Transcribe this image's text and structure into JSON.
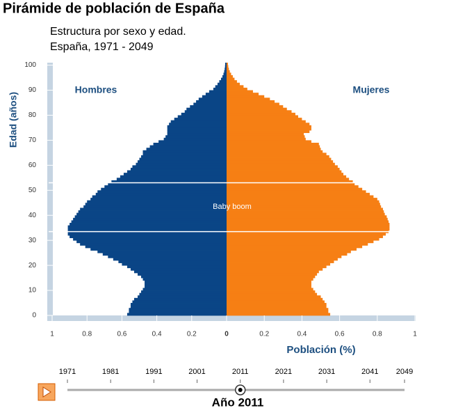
{
  "chart_data": {
    "type": "pyramid",
    "title": "Pirámide de población de España",
    "subtitle": [
      "Estructura por sexo y edad.",
      "España, 1971 - 2049"
    ],
    "y_label": "Edad (años)",
    "x_label": "Población (%)",
    "ylim": [
      0,
      101
    ],
    "yticks": [
      0,
      10,
      20,
      30,
      40,
      50,
      60,
      70,
      80,
      90,
      100
    ],
    "series": [
      {
        "name": "Hombres",
        "color": "#0a4586",
        "side": "left",
        "xlim": [
          1,
          0
        ],
        "xticks": [
          1,
          0.8,
          0.6,
          0.4,
          0.2,
          0
        ],
        "values": [
          0.57,
          0.56,
          0.56,
          0.55,
          0.55,
          0.54,
          0.53,
          0.51,
          0.5,
          0.49,
          0.48,
          0.47,
          0.47,
          0.47,
          0.48,
          0.49,
          0.51,
          0.53,
          0.55,
          0.57,
          0.6,
          0.62,
          0.65,
          0.68,
          0.71,
          0.74,
          0.78,
          0.81,
          0.84,
          0.86,
          0.88,
          0.9,
          0.91,
          0.91,
          0.91,
          0.91,
          0.9,
          0.89,
          0.88,
          0.87,
          0.86,
          0.85,
          0.84,
          0.82,
          0.81,
          0.8,
          0.78,
          0.77,
          0.75,
          0.74,
          0.72,
          0.7,
          0.68,
          0.66,
          0.63,
          0.61,
          0.59,
          0.57,
          0.55,
          0.54,
          0.52,
          0.51,
          0.5,
          0.49,
          0.48,
          0.48,
          0.46,
          0.44,
          0.42,
          0.39,
          0.36,
          0.35,
          0.34,
          0.34,
          0.34,
          0.34,
          0.33,
          0.32,
          0.3,
          0.28,
          0.26,
          0.24,
          0.23,
          0.21,
          0.19,
          0.175,
          0.16,
          0.14,
          0.12,
          0.1,
          0.076,
          0.065,
          0.052,
          0.042,
          0.032,
          0.024,
          0.018,
          0.014,
          0.011,
          0.009,
          0.008
        ]
      },
      {
        "name": "Mujeres",
        "color": "#f67f14",
        "side": "right",
        "xlim": [
          0,
          1
        ],
        "xticks": [
          0.2,
          0.4,
          0.6,
          0.8,
          1
        ],
        "values": [
          0.55,
          0.54,
          0.54,
          0.53,
          0.53,
          0.52,
          0.51,
          0.5,
          0.48,
          0.47,
          0.46,
          0.45,
          0.45,
          0.45,
          0.46,
          0.47,
          0.48,
          0.49,
          0.51,
          0.53,
          0.55,
          0.57,
          0.59,
          0.61,
          0.64,
          0.66,
          0.69,
          0.72,
          0.75,
          0.78,
          0.81,
          0.83,
          0.845,
          0.86,
          0.865,
          0.865,
          0.865,
          0.86,
          0.855,
          0.85,
          0.84,
          0.835,
          0.83,
          0.82,
          0.815,
          0.81,
          0.8,
          0.78,
          0.76,
          0.74,
          0.72,
          0.7,
          0.68,
          0.67,
          0.65,
          0.635,
          0.62,
          0.61,
          0.6,
          0.59,
          0.575,
          0.565,
          0.555,
          0.545,
          0.53,
          0.51,
          0.5,
          0.495,
          0.49,
          0.45,
          0.42,
          0.415,
          0.41,
          0.44,
          0.45,
          0.45,
          0.44,
          0.42,
          0.4,
          0.38,
          0.365,
          0.345,
          0.32,
          0.3,
          0.28,
          0.255,
          0.23,
          0.2,
          0.17,
          0.14,
          0.11,
          0.09,
          0.07,
          0.055,
          0.042,
          0.033,
          0.024,
          0.017,
          0.012,
          0.009,
          0.007
        ]
      }
    ],
    "annotation": {
      "label": "Baby boom",
      "ages": [
        33.5,
        53
      ]
    },
    "slider": {
      "range": [
        1971,
        2049
      ],
      "ticks": [
        1971,
        1981,
        1991,
        2001,
        2011,
        2021,
        2031,
        2041,
        2049
      ],
      "value": 2011,
      "label": "Año 2011"
    }
  }
}
